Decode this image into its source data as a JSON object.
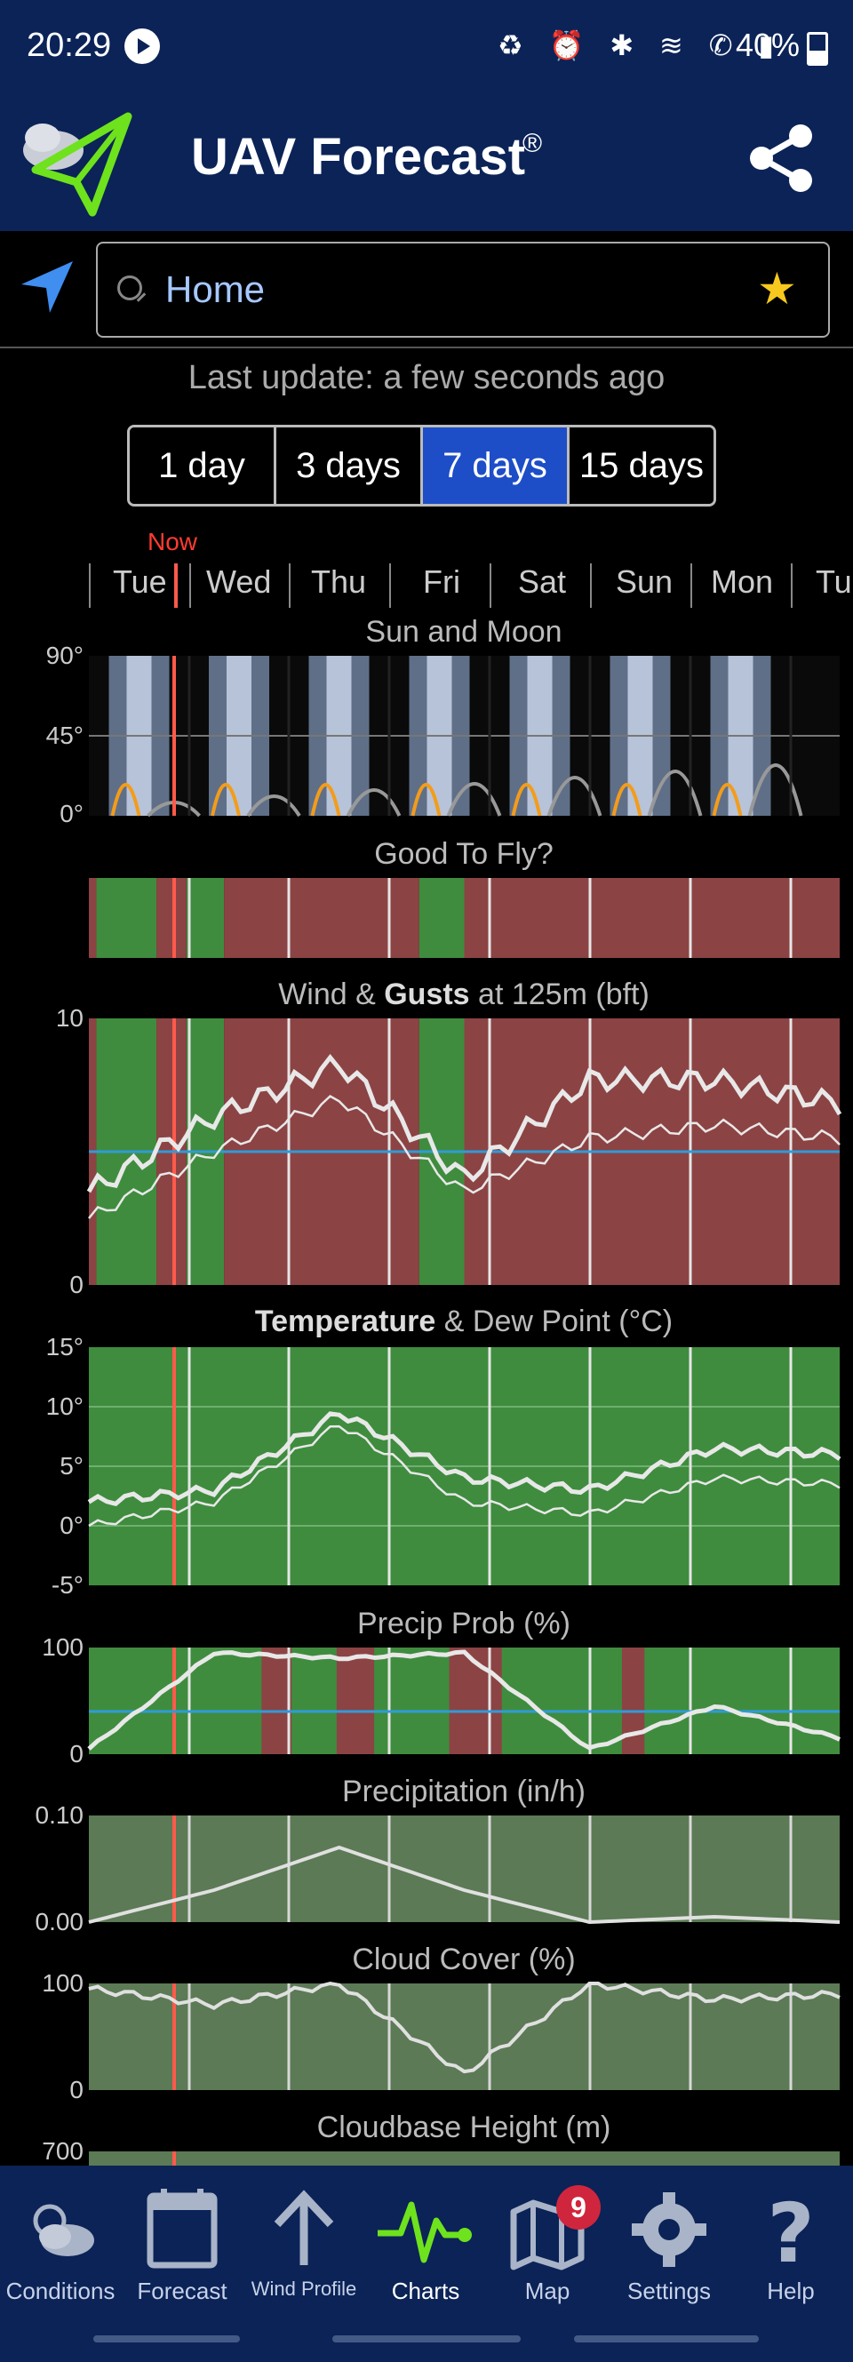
{
  "status_bar": {
    "time": "20:29",
    "icons": "♻ ⏰ ✱ ≋ ✆ ▮",
    "battery": "40%"
  },
  "app_bar": {
    "title": "UAV Forecast",
    "registered": "®",
    "share_icon": "share-icon",
    "logo_icon": "drone-cloud-logo"
  },
  "search": {
    "query": "Home",
    "locate_icon": "navigation-arrow-icon",
    "favorite_icon": "star-icon"
  },
  "last_update": "Last update: a few seconds ago",
  "range_selector": {
    "options": [
      "1 day",
      "3 days",
      "7 days",
      "15 days"
    ],
    "selected": "7 days"
  },
  "timeline": {
    "now_label": "Now",
    "days": [
      "Tue",
      "Wed",
      "Thu",
      "Fri",
      "Sat",
      "Sun",
      "Mon",
      "Tu"
    ]
  },
  "charts": {
    "sun_moon": {
      "title": "Sun and Moon",
      "y_labels": [
        "90°",
        "45°",
        "0°"
      ]
    },
    "good_to_fly": {
      "title": "Good To Fly?"
    },
    "wind": {
      "title_pre": "Wind & ",
      "title_bold": "Gusts",
      "title_post": " at 125m (bft)",
      "y_labels": [
        "10",
        "0"
      ]
    },
    "temperature": {
      "title_bold": "Temperature",
      "title_post": " & Dew Point (°C)",
      "y_labels": [
        "15°",
        "10°",
        "5°",
        "0°",
        "-5°"
      ]
    },
    "precip_prob": {
      "title": "Precip Prob (%)",
      "y_labels": [
        "100",
        "0"
      ]
    },
    "precipitation": {
      "title": "Precipitation (in/h)",
      "y_labels": [
        "0.10",
        "0.00"
      ]
    },
    "cloud_cover": {
      "title": "Cloud Cover (%)",
      "y_labels": [
        "100",
        "0"
      ]
    },
    "cloudbase": {
      "title": "Cloudbase Height (m)",
      "y_labels": [
        "700"
      ]
    }
  },
  "chart_data": [
    {
      "type": "line",
      "title": "Wind & Gusts at 125m (bft)",
      "x": [
        "Tue",
        "Wed",
        "Thu",
        "Fri",
        "Sat",
        "Sun",
        "Mon"
      ],
      "ylim": [
        0,
        10
      ],
      "series": [
        {
          "name": "Gusts",
          "values": [
            3.5,
            6.3,
            8.3,
            4.0,
            7.7,
            7.7,
            6.8
          ]
        },
        {
          "name": "Wind",
          "values": [
            2.5,
            5.0,
            7.0,
            3.5,
            5.5,
            6.0,
            5.5
          ]
        }
      ]
    },
    {
      "type": "line",
      "title": "Temperature & Dew Point (°C)",
      "x": [
        "Tue",
        "Wed",
        "Thu",
        "Fri",
        "Sat",
        "Sun",
        "Mon"
      ],
      "ylim": [
        -5,
        15
      ],
      "series": [
        {
          "name": "Temperature",
          "values": [
            2,
            3,
            9.5,
            4,
            3,
            6.5,
            6
          ]
        },
        {
          "name": "Dew Point",
          "values": [
            0,
            2,
            8.5,
            2,
            1,
            4,
            3.5
          ]
        }
      ]
    },
    {
      "type": "area",
      "title": "Precip Prob (%)",
      "x": [
        "Tue",
        "Wed",
        "Thu",
        "Fri",
        "Sat",
        "Sun",
        "Mon"
      ],
      "ylim": [
        0,
        100
      ],
      "series": [
        {
          "values": [
            5,
            95,
            90,
            95,
            5,
            45,
            15
          ]
        }
      ]
    },
    {
      "type": "line",
      "title": "Precipitation (in/h)",
      "x": [
        "Tue",
        "Wed",
        "Thu",
        "Fri",
        "Sat",
        "Sun",
        "Mon"
      ],
      "ylim": [
        0,
        0.1
      ],
      "series": [
        {
          "values": [
            0,
            0.03,
            0.07,
            0.03,
            0,
            0.005,
            0
          ]
        }
      ]
    },
    {
      "type": "line",
      "title": "Cloud Cover (%)",
      "x": [
        "Tue",
        "Wed",
        "Thu",
        "Fri",
        "Sat",
        "Sun",
        "Mon"
      ],
      "ylim": [
        0,
        100
      ],
      "series": [
        {
          "values": [
            95,
            80,
            100,
            15,
            100,
            85,
            90
          ]
        }
      ]
    }
  ],
  "bottom_nav": {
    "items": [
      {
        "label": "Conditions",
        "icon": "partly-cloudy-icon"
      },
      {
        "label": "Forecast",
        "icon": "calendar-icon"
      },
      {
        "label": "Wind Profile",
        "icon": "up-arrow-icon"
      },
      {
        "label": "Charts",
        "icon": "pulse-icon"
      },
      {
        "label": "Map",
        "icon": "map-icon",
        "badge": "9"
      },
      {
        "label": "Settings",
        "icon": "gear-icon"
      },
      {
        "label": "Help",
        "icon": "question-icon"
      }
    ],
    "active": "Charts"
  },
  "colors": {
    "header": "#0b2357",
    "good": "#3f8c3e",
    "bad": "#8c4344",
    "now_line": "#ff5a4a",
    "threshold": "#2f9bd8",
    "accent": "#1d4ec8"
  }
}
